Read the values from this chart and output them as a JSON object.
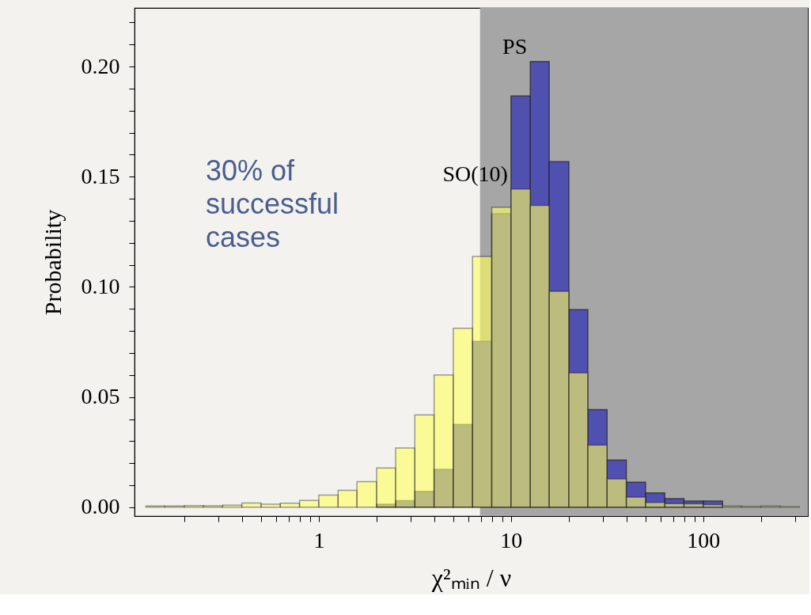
{
  "chart_data": {
    "type": "histogram",
    "xlabel": "χ²ₘᵢₙ / ν",
    "ylabel": "Probability",
    "bins": [
      0.126,
      0.158,
      0.2,
      0.251,
      0.316,
      0.398,
      0.501,
      0.631,
      0.794,
      1,
      1.26,
      1.58,
      2,
      2.51,
      3.16,
      3.98,
      5.01,
      6.31,
      7.94,
      10,
      12.6,
      15.8,
      20,
      25.1,
      31.6,
      39.8,
      50.1,
      63.1,
      79.4,
      100,
      126,
      158,
      200,
      251,
      316
    ],
    "series": [
      {
        "name": "PS",
        "color": "#5050b0",
        "values": [
          null,
          null,
          null,
          null,
          null,
          null,
          null,
          null,
          null,
          null,
          null,
          null,
          0.0014,
          0.003,
          0.0072,
          0.0172,
          0.0376,
          0.0753,
          0.1332,
          0.1866,
          0.2023,
          0.1568,
          0.0897,
          0.0443,
          0.0214,
          0.0114,
          0.0065,
          0.0039,
          0.0028,
          0.0028,
          null,
          null,
          null,
          null
        ]
      },
      {
        "name": "SO(10)",
        "color": "#ffff60",
        "values": [
          0.0006,
          0.0006,
          0.0008,
          0.0007,
          0.0009,
          0.0019,
          0.0014,
          0.0018,
          0.0031,
          0.0055,
          0.0077,
          0.0116,
          0.0178,
          0.0269,
          0.0419,
          0.06,
          0.0812,
          0.1138,
          0.1362,
          0.1444,
          0.137,
          0.098,
          0.061,
          0.0282,
          0.0129,
          0.0046,
          0.0022,
          0.0017,
          0.0016,
          0.0012,
          0.0006,
          0.0004,
          0.0006,
          0.0003
        ]
      }
    ],
    "log": "x",
    "xlim": [
      0.11,
      350
    ],
    "ylim": [
      -0.004,
      0.2266
    ],
    "xticks": [
      {
        "value": 0.2,
        "label": null
      },
      {
        "value": 0.3,
        "label": null
      },
      {
        "value": 0.4,
        "label": null
      },
      {
        "value": 0.5,
        "label": null
      },
      {
        "value": 0.6,
        "label": null
      },
      {
        "value": 0.7,
        "label": null
      },
      {
        "value": 0.8,
        "label": null
      },
      {
        "value": 0.9,
        "label": null
      },
      1,
      {
        "value": 2,
        "label": null
      },
      {
        "value": 3,
        "label": null
      },
      {
        "value": 4,
        "label": null
      },
      {
        "value": 5,
        "label": null
      },
      {
        "value": 6,
        "label": null
      },
      {
        "value": 7,
        "label": null
      },
      {
        "value": 8,
        "label": null
      },
      {
        "value": 9,
        "label": null
      },
      10,
      {
        "value": 20,
        "label": null
      },
      {
        "value": 30,
        "label": null
      },
      {
        "value": 40,
        "label": null
      },
      {
        "value": 50,
        "label": null
      },
      {
        "value": 60,
        "label": null
      },
      {
        "value": 70,
        "label": null
      },
      {
        "value": 80,
        "label": null
      },
      {
        "value": 90,
        "label": null
      },
      100,
      {
        "value": 200,
        "label": null
      },
      {
        "value": 300,
        "label": null
      }
    ],
    "yticks": [
      {
        "value": 0,
        "label": "0.00"
      },
      {
        "value": 0.01,
        "label": null
      },
      {
        "value": 0.02,
        "label": null
      },
      {
        "value": 0.03,
        "label": null
      },
      {
        "value": 0.04,
        "label": null
      },
      {
        "value": 0.05,
        "label": "0.05"
      },
      {
        "value": 0.06,
        "label": null
      },
      {
        "value": 0.07,
        "label": null
      },
      {
        "value": 0.08,
        "label": null
      },
      {
        "value": 0.09,
        "label": null
      },
      {
        "value": 0.1,
        "label": "0.10"
      },
      {
        "value": 0.11,
        "label": null
      },
      {
        "value": 0.12,
        "label": null
      },
      {
        "value": 0.13,
        "label": null
      },
      {
        "value": 0.14,
        "label": null
      },
      {
        "value": 0.15,
        "label": "0.15"
      },
      {
        "value": 0.16,
        "label": null
      },
      {
        "value": 0.17,
        "label": null
      },
      {
        "value": 0.18,
        "label": null
      },
      {
        "value": 0.19,
        "label": null
      },
      {
        "value": 0.2,
        "label": "0.20"
      },
      {
        "value": 0.21,
        "label": null
      },
      {
        "value": 0.22,
        "label": null
      }
    ],
    "bands": [
      {
        "axis": "x",
        "from": 6.9,
        "to": 350,
        "color": "#a6a6a6"
      }
    ],
    "annotations": [
      "30% of\nsuccessful\ncases"
    ],
    "grid": false,
    "legend": false
  }
}
